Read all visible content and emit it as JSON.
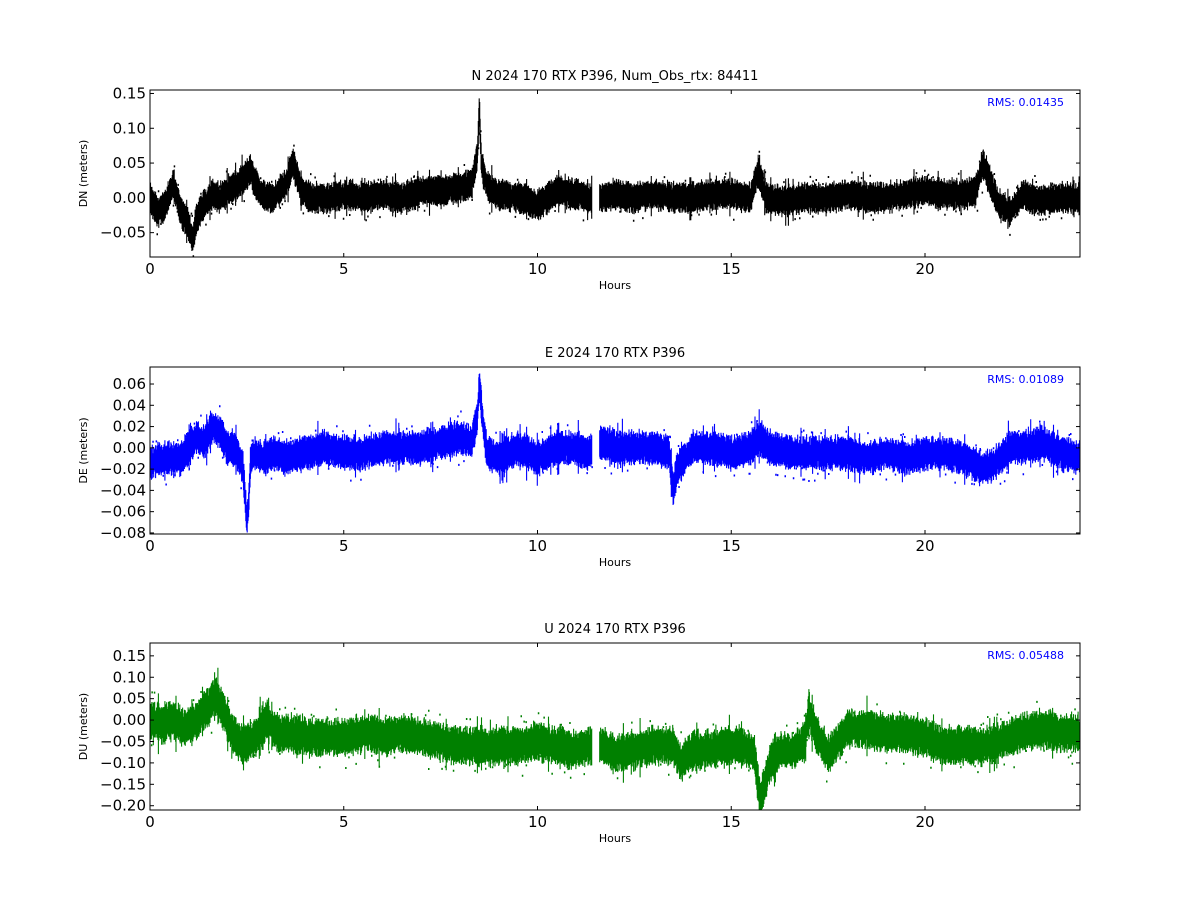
{
  "chart_data": [
    {
      "type": "scatter",
      "title": "N 2024 170 RTX  P396, Num_Obs_rtx: 84411",
      "xlabel": "Hours",
      "ylabel": "DN (meters)",
      "xlim": [
        0,
        24
      ],
      "ylim": [
        -0.085,
        0.155
      ],
      "xticks": [
        0,
        5,
        10,
        15,
        20
      ],
      "xtick_labels": [
        "0",
        "5",
        "10",
        "15",
        "20"
      ],
      "yticks": [
        -0.05,
        0.0,
        0.05,
        0.1,
        0.15
      ],
      "ytick_labels": [
        "−0.05",
        "0.00",
        "0.05",
        "0.10",
        "0.15"
      ],
      "grid": false,
      "color": "#000000",
      "annotation": "RMS:  0.01435",
      "annotation_color": "#0000ff",
      "gap_hours": [
        11.4,
        11.6
      ],
      "series": [
        {
          "x": [
            0,
            0.2,
            0.4,
            0.6,
            0.8,
            1.0,
            1.1,
            1.2,
            1.4,
            1.6,
            1.8,
            2.0,
            2.3,
            2.6,
            2.7,
            2.9,
            3.2,
            3.5,
            3.7,
            3.9,
            4.2,
            4.6,
            5.0,
            5.5,
            6.0,
            6.5,
            7.0,
            7.5,
            8.0,
            8.3,
            8.45,
            8.5,
            8.55,
            8.7,
            9.0,
            9.5,
            10.0,
            10.5,
            11.0,
            11.3,
            11.7,
            12.0,
            12.5,
            13.0,
            13.5,
            14.0,
            14.5,
            15.0,
            15.5,
            15.7,
            15.9,
            16.3,
            17.0,
            17.5,
            18.0,
            18.5,
            19.0,
            19.5,
            20.0,
            20.5,
            21.0,
            21.3,
            21.5,
            21.7,
            21.9,
            22.2,
            22.5,
            23.0,
            23.5,
            24.0
          ],
          "y": [
            0.0,
            -0.02,
            -0.01,
            0.02,
            -0.02,
            -0.04,
            -0.06,
            -0.03,
            -0.01,
            0.005,
            0.0,
            0.01,
            0.02,
            0.04,
            0.02,
            0.005,
            0.0,
            0.02,
            0.05,
            0.01,
            0.0,
            0.0,
            0.005,
            0.0,
            0.005,
            0.0,
            0.01,
            0.01,
            0.015,
            0.02,
            0.06,
            0.13,
            0.05,
            0.015,
            0.005,
            0.0,
            -0.01,
            0.01,
            0.005,
            0.0,
            0.0,
            0.005,
            0.0,
            0.005,
            0.0,
            0.0,
            0.005,
            0.005,
            0.0,
            0.04,
            0.0,
            -0.005,
            0.0,
            0.0,
            0.005,
            0.0,
            0.0,
            0.005,
            0.01,
            0.005,
            0.005,
            0.01,
            0.05,
            0.02,
            -0.01,
            -0.02,
            0.005,
            -0.005,
            0.0,
            0.0
          ],
          "spread": 0.022
        }
      ]
    },
    {
      "type": "scatter",
      "title": "E 2024 170 RTX  P396",
      "xlabel": "Hours",
      "ylabel": "DE (meters)",
      "xlim": [
        0,
        24
      ],
      "ylim": [
        -0.081,
        0.076
      ],
      "xticks": [
        0,
        5,
        10,
        15,
        20
      ],
      "xtick_labels": [
        "0",
        "5",
        "10",
        "15",
        "20"
      ],
      "yticks": [
        -0.08,
        -0.06,
        -0.04,
        -0.02,
        0.0,
        0.02,
        0.04,
        0.06
      ],
      "ytick_labels": [
        "−0.08",
        "−0.06",
        "−0.04",
        "−0.02",
        "0.00",
        "0.02",
        "0.04",
        "0.06"
      ],
      "grid": false,
      "color": "#0000ff",
      "annotation": "RMS:  0.01089",
      "annotation_color": "#0000ff",
      "gap_hours": [
        11.4,
        11.6
      ],
      "series": [
        {
          "x": [
            0,
            0.2,
            0.5,
            0.8,
            1.0,
            1.2,
            1.4,
            1.6,
            1.8,
            2.0,
            2.2,
            2.4,
            2.5,
            2.55,
            2.6,
            2.7,
            2.9,
            3.2,
            3.5,
            4.0,
            4.5,
            5.0,
            5.5,
            6.0,
            6.5,
            7.0,
            7.5,
            8.0,
            8.3,
            8.45,
            8.5,
            8.6,
            8.7,
            9.0,
            9.5,
            10.0,
            10.5,
            11.0,
            11.3,
            11.7,
            12.0,
            12.5,
            13.0,
            13.4,
            13.5,
            13.6,
            13.8,
            14.0,
            14.5,
            15.0,
            15.5,
            15.7,
            16.0,
            16.5,
            17.0,
            17.5,
            18.0,
            18.5,
            19.0,
            19.5,
            20.0,
            20.5,
            21.0,
            21.5,
            21.8,
            22.2,
            22.5,
            23.0,
            23.5,
            24.0
          ],
          "y": [
            -0.015,
            -0.01,
            -0.01,
            -0.01,
            0.0,
            0.01,
            0.005,
            0.02,
            0.015,
            0.0,
            0.0,
            -0.02,
            -0.07,
            -0.05,
            -0.01,
            -0.005,
            -0.01,
            -0.005,
            -0.01,
            -0.005,
            0.0,
            -0.005,
            -0.005,
            0.0,
            0.0,
            0.0,
            0.005,
            0.01,
            0.005,
            0.03,
            0.06,
            0.02,
            -0.005,
            -0.01,
            0.0,
            -0.01,
            0.0,
            0.0,
            -0.005,
            0.005,
            0.0,
            0.0,
            0.0,
            -0.005,
            -0.04,
            -0.02,
            -0.01,
            0.0,
            0.0,
            -0.005,
            0.0,
            0.01,
            0.0,
            -0.005,
            -0.005,
            -0.005,
            -0.005,
            -0.01,
            -0.005,
            -0.01,
            -0.005,
            -0.005,
            -0.01,
            -0.02,
            -0.015,
            0.0,
            0.0,
            0.005,
            -0.005,
            -0.01
          ],
          "spread": 0.016
        }
      ]
    },
    {
      "type": "scatter",
      "title": "U 2024 170 RTX  P396",
      "xlabel": "Hours",
      "ylabel": "DU (meters)",
      "xlim": [
        0,
        24
      ],
      "ylim": [
        -0.21,
        0.18
      ],
      "xticks": [
        0,
        5,
        10,
        15,
        20
      ],
      "xtick_labels": [
        "0",
        "5",
        "10",
        "15",
        "20"
      ],
      "yticks": [
        -0.2,
        -0.15,
        -0.1,
        -0.05,
        0.0,
        0.05,
        0.1,
        0.15
      ],
      "ytick_labels": [
        "−0.20",
        "−0.15",
        "−0.10",
        "−0.05",
        "0.00",
        "0.05",
        "0.10",
        "0.15"
      ],
      "grid": false,
      "color": "#008000",
      "annotation": "RMS:  0.05488",
      "annotation_color": "#0000ff",
      "gap_hours": [
        11.4,
        11.6
      ],
      "series": [
        {
          "x": [
            0,
            0.3,
            0.6,
            0.9,
            1.2,
            1.5,
            1.7,
            1.9,
            2.1,
            2.4,
            2.7,
            3.0,
            3.3,
            3.6,
            4.0,
            4.5,
            5.0,
            5.5,
            6.0,
            6.5,
            7.0,
            7.5,
            8.0,
            8.5,
            9.0,
            9.5,
            10.0,
            10.5,
            11.0,
            11.3,
            11.7,
            12.0,
            12.5,
            13.0,
            13.5,
            13.7,
            14.0,
            14.5,
            15.0,
            15.3,
            15.6,
            15.75,
            16.0,
            16.3,
            16.6,
            16.9,
            17.0,
            17.2,
            17.5,
            18.0,
            18.5,
            19.0,
            19.5,
            20.0,
            20.5,
            21.0,
            21.5,
            22.0,
            22.5,
            23.0,
            23.5,
            24.0
          ],
          "y": [
            0.0,
            -0.01,
            0.0,
            -0.02,
            0.0,
            0.03,
            0.06,
            0.02,
            -0.03,
            -0.06,
            -0.04,
            0.0,
            -0.03,
            -0.03,
            -0.04,
            -0.04,
            -0.04,
            -0.03,
            -0.04,
            -0.03,
            -0.04,
            -0.05,
            -0.06,
            -0.06,
            -0.06,
            -0.06,
            -0.05,
            -0.06,
            -0.07,
            -0.06,
            -0.06,
            -0.08,
            -0.07,
            -0.06,
            -0.06,
            -0.1,
            -0.07,
            -0.07,
            -0.06,
            -0.06,
            -0.08,
            -0.19,
            -0.1,
            -0.07,
            -0.07,
            -0.05,
            0.02,
            -0.03,
            -0.08,
            -0.02,
            -0.02,
            -0.03,
            -0.03,
            -0.04,
            -0.06,
            -0.06,
            -0.06,
            -0.05,
            -0.03,
            -0.02,
            -0.03,
            -0.03
          ],
          "spread": 0.045
        }
      ]
    }
  ]
}
